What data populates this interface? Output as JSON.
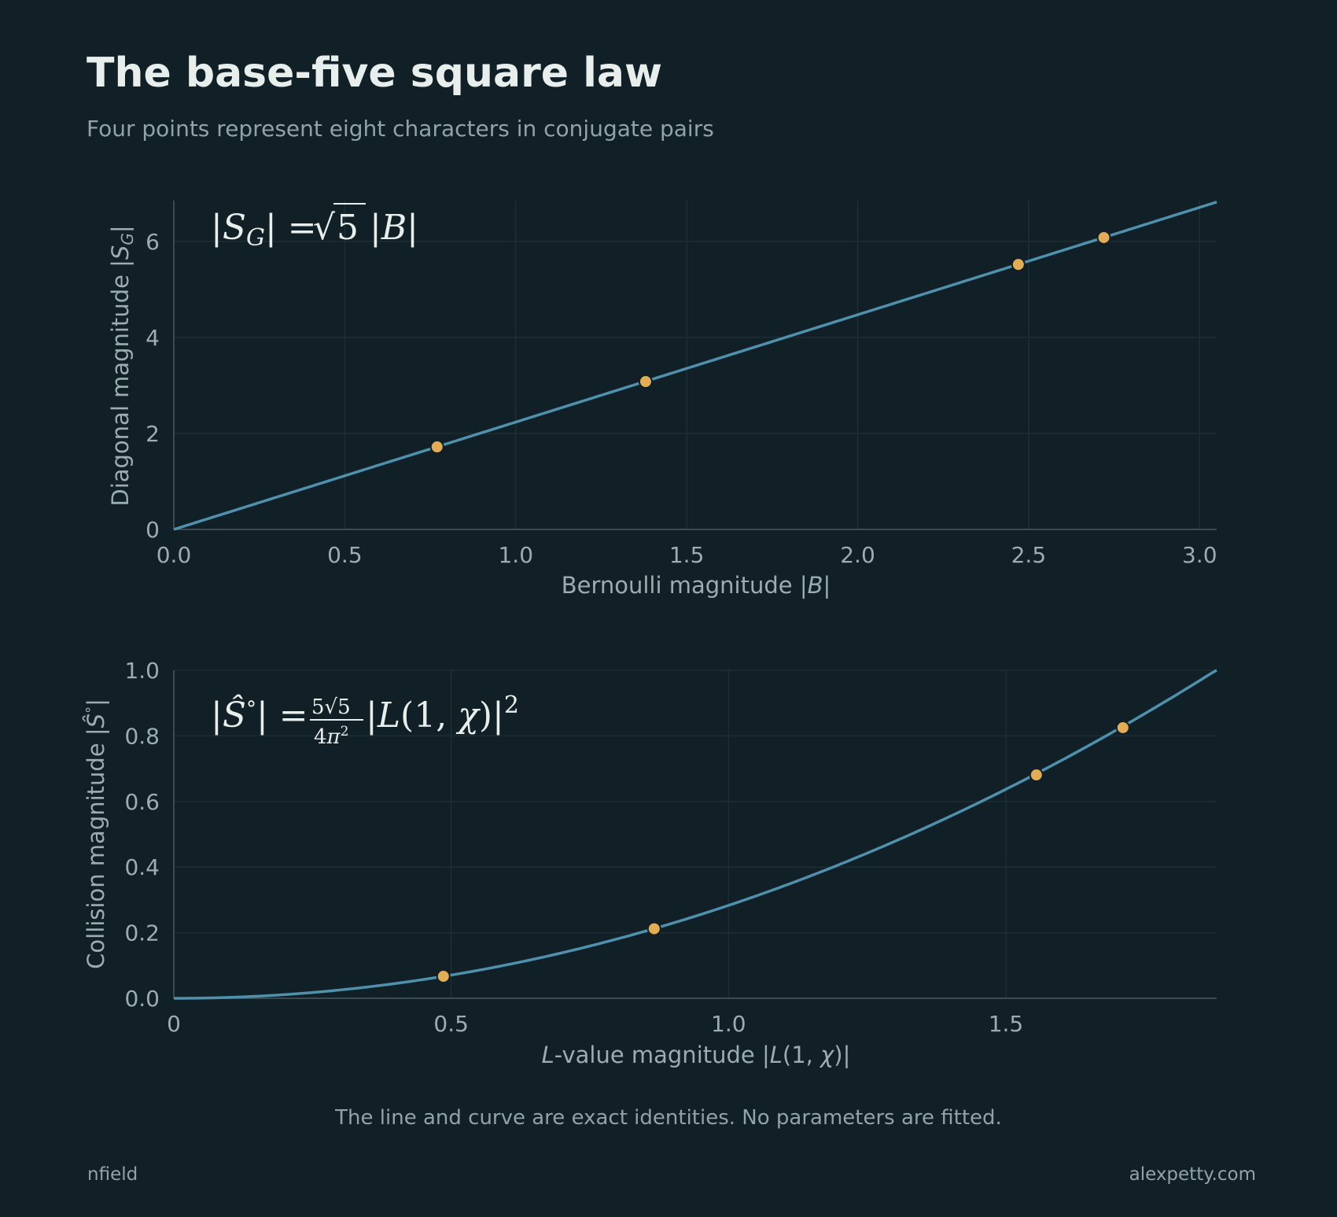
{
  "page": {
    "title": "The base-five square law",
    "subtitle": "Four points represent eight characters in conjugate pairs",
    "footnote": "The line and curve are exact identities. No parameters are fitted.",
    "credit_left": "nfield",
    "credit_right": "alexpetty.com"
  },
  "colors": {
    "background": "#111f26",
    "line": "#4f91ad",
    "point": "#e2ad55",
    "grid": "#1f2e35",
    "axis": "#3a4a51",
    "text_muted": "#9aadb1"
  },
  "chart_data": [
    {
      "type": "line",
      "formula": "|S_G| = √5 |B|",
      "xlabel": "Bernoulli magnitude |B|",
      "ylabel": "Diagonal magnitude |S_G|",
      "xlim": [
        0,
        3.05
      ],
      "ylim": [
        0,
        6.85
      ],
      "xticks": [
        "0.0",
        "0.5",
        "1.0",
        "1.5",
        "2.0",
        "2.5",
        "3.0"
      ],
      "yticks": [
        "0",
        "2",
        "4",
        "6"
      ],
      "grid": true,
      "curve": {
        "name": "",
        "relation": "y = sqrt(5) * x",
        "x_range": [
          0,
          3.05
        ]
      },
      "points": [
        {
          "x": 0.77,
          "y": 1.72
        },
        {
          "x": 1.38,
          "y": 3.08
        },
        {
          "x": 2.47,
          "y": 5.52
        },
        {
          "x": 2.72,
          "y": 6.08
        }
      ]
    },
    {
      "type": "line",
      "formula": "|Ŝ°| = (5√5 / 4π²) |L(1,χ)|²",
      "xlabel": "L-value magnitude |L(1, χ)|",
      "ylabel": "Collision magnitude |Ŝ°|",
      "xlim": [
        0,
        1.88
      ],
      "ylim": [
        0,
        1.0
      ],
      "xticks": [
        "0",
        "0.5",
        "1.0",
        "1.5"
      ],
      "yticks": [
        "0.0",
        "0.2",
        "0.4",
        "0.6",
        "0.8",
        "1.0"
      ],
      "grid": true,
      "curve": {
        "name": "",
        "relation": "y = (5*sqrt(5)/(4*pi^2)) * x^2",
        "x_range": [
          0,
          1.88
        ]
      },
      "points": [
        {
          "x": 0.486,
          "y": 0.067
        },
        {
          "x": 0.866,
          "y": 0.212
        },
        {
          "x": 1.555,
          "y": 0.681
        },
        {
          "x": 1.711,
          "y": 0.825
        }
      ]
    }
  ]
}
